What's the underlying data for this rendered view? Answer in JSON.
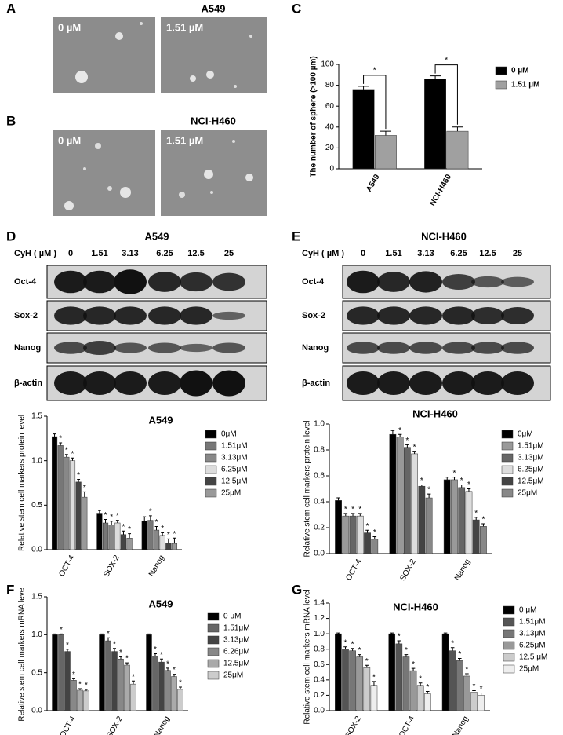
{
  "panels": {
    "A": {
      "label": "A",
      "title": "A549",
      "images": [
        "0 µM",
        "1.51 µM"
      ]
    },
    "B": {
      "label": "B",
      "title": "NCI-H460",
      "images": [
        "0 µM",
        "1.51 µM"
      ]
    },
    "C": {
      "label": "C"
    },
    "D": {
      "label": "D",
      "title": "A549",
      "dose_label": "CyH ( µM )",
      "doses": [
        "0",
        "1.51",
        "3.13",
        "6.25",
        "12.5",
        "25"
      ],
      "rows": [
        "Oct-4",
        "Sox-2",
        "Nanog",
        "β-actin"
      ]
    },
    "E": {
      "label": "E",
      "title": "NCI-H460",
      "dose_label": "CyH ( µM )",
      "doses": [
        "0",
        "1.51",
        "3.13",
        "6.25",
        "12.5",
        "25"
      ],
      "rows": [
        "Oct-4",
        "Sox-2",
        "Nanog",
        "β-actin"
      ]
    },
    "F": {
      "label": "F"
    },
    "G": {
      "label": "G"
    }
  },
  "chart_data": [
    {
      "type": "bar",
      "y_label": "The number of sphere (>100  µm)",
      "categories": [
        "A549",
        "NCI-H460"
      ],
      "ylim": [
        0,
        100
      ],
      "yticks": [
        0,
        20,
        40,
        60,
        80,
        100
      ],
      "annotations": [
        "*",
        "*"
      ],
      "series": [
        {
          "name": "0 µM",
          "color": "#000000",
          "values": [
            76,
            86
          ],
          "errors": [
            3,
            3
          ]
        },
        {
          "name": "1.51 µM",
          "color": "#a0a0a0",
          "values": [
            32,
            36
          ],
          "errors": [
            4,
            4
          ]
        }
      ]
    },
    {
      "type": "bar",
      "title": "A549",
      "y_label": "Relative stem cell markers protein level",
      "categories": [
        "OCT-4",
        "SOX-2",
        "Nanog"
      ],
      "ylim": [
        0,
        1.5
      ],
      "yticks": [
        {
          "value": 0,
          "label": "0.0"
        },
        {
          "value": 0.5,
          "label": "0.5"
        },
        {
          "value": 1,
          "label": "1.0"
        },
        {
          "value": 1.5,
          "label": "1.5"
        }
      ],
      "series": [
        {
          "name": "0μM",
          "color": "#000000",
          "values": [
            1.27,
            0.41,
            0.32
          ],
          "errors": [
            0.03,
            0.03,
            0.05
          ]
        },
        {
          "name": "1.51μM",
          "color": "#777777",
          "values": [
            1.17,
            0.3,
            0.33
          ],
          "errors": [
            0.03,
            0.04,
            0.05
          ],
          "stars": [
            "*",
            "*",
            "*"
          ]
        },
        {
          "name": "3.13μM",
          "color": "#888888",
          "values": [
            1.04,
            0.28,
            0.22
          ],
          "errors": [
            0.03,
            0.04,
            0.04
          ],
          "stars": [
            "*",
            "*",
            "*"
          ]
        },
        {
          "name": "6.25μM",
          "color": "#dddddd",
          "values": [
            1.0,
            0.3,
            0.16
          ],
          "errors": [
            0.03,
            0.03,
            0.03
          ],
          "stars": [
            "*",
            "*",
            "*"
          ]
        },
        {
          "name": "12.5μM",
          "color": "#444444",
          "values": [
            0.76,
            0.17,
            0.07
          ],
          "errors": [
            0.03,
            0.04,
            0.05
          ],
          "stars": [
            "*",
            "*",
            "*"
          ]
        },
        {
          "name": "25μM",
          "color": "#999999",
          "values": [
            0.59,
            0.13,
            0.07
          ],
          "errors": [
            0.06,
            0.05,
            0.06
          ],
          "stars": [
            "*",
            "*",
            "*"
          ]
        }
      ]
    },
    {
      "type": "bar",
      "title": "NCI-H460",
      "y_label": "Relative stem cell markers protein level",
      "categories": [
        "OCT-4",
        "SOX-2",
        "Nanog"
      ],
      "ylim": [
        0,
        1
      ],
      "yticks": [
        {
          "value": 0,
          "label": "0.0"
        },
        {
          "value": 0.2,
          "label": "0.2"
        },
        {
          "value": 0.4,
          "label": "0.4"
        },
        {
          "value": 0.6,
          "label": "0.6"
        },
        {
          "value": 0.8,
          "label": "0.8"
        },
        {
          "value": 1,
          "label": "1.0"
        }
      ],
      "series": [
        {
          "name": "0μM",
          "color": "#000000",
          "values": [
            0.41,
            0.92,
            0.57
          ],
          "errors": [
            0.02,
            0.03,
            0.02
          ]
        },
        {
          "name": "1.51μM",
          "color": "#999999",
          "values": [
            0.29,
            0.9,
            0.57
          ],
          "errors": [
            0.02,
            0.02,
            0.02
          ],
          "stars": [
            "*",
            "*",
            "*"
          ]
        },
        {
          "name": "3.13μM",
          "color": "#666666",
          "values": [
            0.29,
            0.82,
            0.51
          ],
          "errors": [
            0.02,
            0.02,
            0.02
          ],
          "stars": [
            "*",
            "*",
            "*"
          ]
        },
        {
          "name": "6.25μM",
          "color": "#dddddd",
          "values": [
            0.29,
            0.77,
            0.48
          ],
          "errors": [
            0.02,
            0.02,
            0.02
          ],
          "stars": [
            "*",
            "*",
            "*"
          ]
        },
        {
          "name": "12.5μM",
          "color": "#444444",
          "values": [
            0.16,
            0.52,
            0.26
          ],
          "errors": [
            0.02,
            0.01,
            0.02
          ],
          "stars": [
            "*",
            "*",
            "*"
          ]
        },
        {
          "name": "25μM",
          "color": "#888888",
          "values": [
            0.11,
            0.43,
            0.21
          ],
          "errors": [
            0.02,
            0.03,
            0.02
          ],
          "stars": [
            "*",
            "*",
            "*"
          ]
        }
      ]
    },
    {
      "type": "bar",
      "title": "A549",
      "y_label": "Relative stem cell markers mRNA level",
      "categories": [
        "OCT-4",
        "SOX-2",
        "Nanog"
      ],
      "ylim": [
        0,
        1.5
      ],
      "yticks": [
        {
          "value": 0,
          "label": "0.0"
        },
        {
          "value": 0.5,
          "label": "0.5"
        },
        {
          "value": 1,
          "label": "1.0"
        },
        {
          "value": 1.5,
          "label": "1.5"
        }
      ],
      "series": [
        {
          "name": "0 μM",
          "color": "#000000",
          "values": [
            1.0,
            1.0,
            1.0
          ],
          "errors": [
            0.01,
            0.01,
            0.01
          ]
        },
        {
          "name": "1.51μM",
          "color": "#666666",
          "values": [
            1.0,
            0.92,
            0.72
          ],
          "errors": [
            0.01,
            0.04,
            0.03
          ],
          "stars": [
            "*",
            "*",
            "*"
          ]
        },
        {
          "name": "3.13μM",
          "color": "#444444",
          "values": [
            0.78,
            0.78,
            0.64
          ],
          "errors": [
            0.03,
            0.04,
            0.04
          ],
          "stars": [
            "*",
            "*",
            "*"
          ]
        },
        {
          "name": "6.26μM",
          "color": "#888888",
          "values": [
            0.4,
            0.68,
            0.53
          ],
          "errors": [
            0.02,
            0.03,
            0.03
          ],
          "stars": [
            "*",
            "*",
            "*"
          ]
        },
        {
          "name": "12.5μM",
          "color": "#aaaaaa",
          "values": [
            0.27,
            0.6,
            0.45
          ],
          "errors": [
            0.02,
            0.03,
            0.03
          ],
          "stars": [
            "*",
            "*",
            "*"
          ]
        },
        {
          "name": "25μM",
          "color": "#cccccc",
          "values": [
            0.26,
            0.35,
            0.28
          ],
          "errors": [
            0.02,
            0.04,
            0.03
          ],
          "stars": [
            "*",
            "*",
            "*"
          ]
        }
      ]
    },
    {
      "type": "bar",
      "title": "NCI-H460",
      "y_label": "Relative stem cell markers mRNA level",
      "categories": [
        "SOX-2",
        "OCT-4",
        "Nanog"
      ],
      "ylim": [
        0,
        1.4
      ],
      "yticks": [
        {
          "value": 0,
          "label": "0.0"
        },
        {
          "value": 0.2,
          "label": "0.2"
        },
        {
          "value": 0.4,
          "label": "0.4"
        },
        {
          "value": 0.6,
          "label": "0.6"
        },
        {
          "value": 0.8,
          "label": "0.8"
        },
        {
          "value": 1,
          "label": "1.0"
        },
        {
          "value": 1.2,
          "label": "1.2"
        },
        {
          "value": 1.4,
          "label": "1.4"
        }
      ],
      "series": [
        {
          "name": "0 μM",
          "color": "#000000",
          "values": [
            1.0,
            1.0,
            1.0
          ],
          "errors": [
            0.01,
            0.01,
            0.01
          ]
        },
        {
          "name": "1.51μM",
          "color": "#555555",
          "values": [
            0.8,
            0.87,
            0.78
          ],
          "errors": [
            0.03,
            0.04,
            0.04
          ],
          "stars": [
            "*",
            "*",
            "*"
          ]
        },
        {
          "name": "3.13μM",
          "color": "#777777",
          "values": [
            0.78,
            0.7,
            0.65
          ],
          "errors": [
            0.03,
            0.03,
            0.03
          ],
          "stars": [
            "*",
            "*",
            "*"
          ]
        },
        {
          "name": "6.25μM",
          "color": "#999999",
          "values": [
            0.7,
            0.52,
            0.45
          ],
          "errors": [
            0.03,
            0.03,
            0.03
          ],
          "stars": [
            "*",
            "*",
            "*"
          ]
        },
        {
          "name": "12.5 μM",
          "color": "#cccccc",
          "values": [
            0.56,
            0.33,
            0.24
          ],
          "errors": [
            0.03,
            0.03,
            0.02
          ],
          "stars": [
            "*",
            "*",
            "*"
          ]
        },
        {
          "name": "25μM",
          "color": "#eeeeee",
          "values": [
            0.33,
            0.22,
            0.2
          ],
          "errors": [
            0.05,
            0.03,
            0.03
          ],
          "stars": [
            "*",
            "*",
            "*"
          ]
        }
      ]
    }
  ]
}
